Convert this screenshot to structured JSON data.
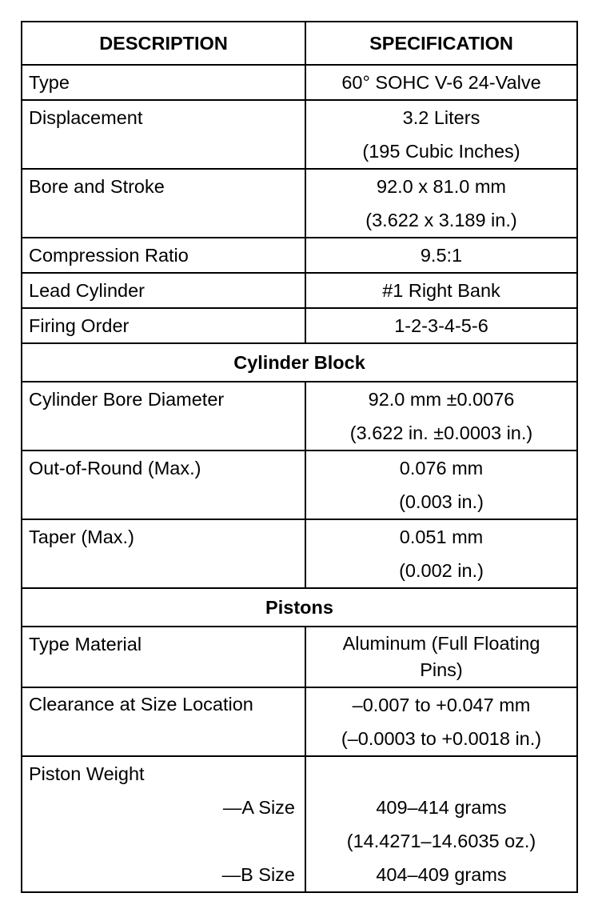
{
  "table": {
    "headers": [
      "DESCRIPTION",
      "SPECIFICATION"
    ],
    "rows": [
      {
        "kind": "spec",
        "desc": [
          "Type"
        ],
        "spec": [
          "60° SOHC V-6 24-Valve"
        ]
      },
      {
        "kind": "spec",
        "desc": [
          "Displacement"
        ],
        "spec": [
          "3.2 Liters",
          "(195 Cubic Inches)"
        ]
      },
      {
        "kind": "spec",
        "desc": [
          "Bore and Stroke"
        ],
        "spec": [
          "92.0 x 81.0 mm",
          "(3.622 x 3.189 in.)"
        ]
      },
      {
        "kind": "spec",
        "desc": [
          "Compression Ratio"
        ],
        "spec": [
          "9.5:1"
        ]
      },
      {
        "kind": "spec",
        "desc": [
          "Lead Cylinder"
        ],
        "spec": [
          "#1 Right Bank"
        ]
      },
      {
        "kind": "spec",
        "desc": [
          "Firing Order"
        ],
        "spec": [
          "1-2-3-4-5-6"
        ]
      },
      {
        "kind": "section",
        "title": "Cylinder Block"
      },
      {
        "kind": "spec",
        "desc": [
          "Cylinder Bore Diameter"
        ],
        "spec": [
          "92.0 mm ±0.0076",
          "(3.622 in. ±0.0003 in.)"
        ]
      },
      {
        "kind": "spec",
        "desc": [
          "Out-of-Round (Max.)"
        ],
        "spec": [
          "0.076 mm",
          "(0.003 in.)"
        ]
      },
      {
        "kind": "spec",
        "desc": [
          "Taper (Max.)"
        ],
        "spec": [
          "0.051 mm",
          "(0.002 in.)"
        ]
      },
      {
        "kind": "section",
        "title": "Pistons"
      },
      {
        "kind": "spec",
        "desc": [
          "Type Material"
        ],
        "spec_wrap": "Aluminum (Full Floating Pins)"
      },
      {
        "kind": "spec",
        "desc_wrap": "Clearance at Size Location",
        "spec": [
          "–0.007 to +0.047 mm",
          "(–0.0003 to +0.0018 in.)"
        ]
      },
      {
        "kind": "spec",
        "desc": [
          "Piston Weight",
          "—A Size",
          "",
          "—B Size"
        ],
        "desc_right_from": 1,
        "spec": [
          "",
          "409–414 grams",
          "(14.4271–14.6035 oz.)",
          "404–409 grams"
        ]
      }
    ]
  }
}
